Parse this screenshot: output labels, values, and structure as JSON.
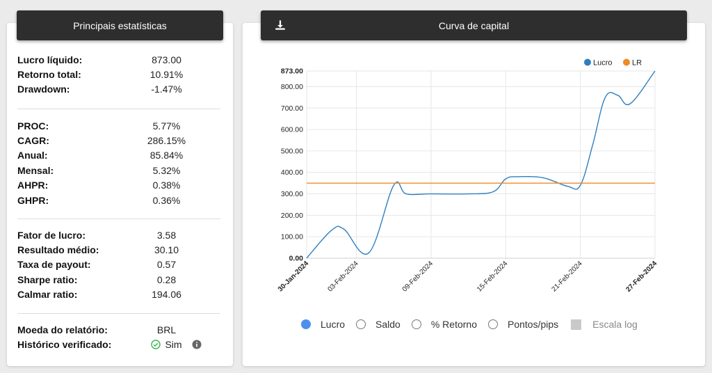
{
  "stats": {
    "title": "Principais estatísticas",
    "groups": [
      [
        {
          "label": "Lucro líquido:",
          "value": "873.00"
        },
        {
          "label": "Retorno total:",
          "value": "10.91%"
        },
        {
          "label": "Drawdown:",
          "value": "-1.47%"
        }
      ],
      [
        {
          "label": "PROC:",
          "value": "5.77%"
        },
        {
          "label": "CAGR:",
          "value": "286.15%"
        },
        {
          "label": "Anual:",
          "value": "85.84%"
        },
        {
          "label": "Mensal:",
          "value": "5.32%"
        },
        {
          "label": "AHPR:",
          "value": "0.38%"
        },
        {
          "label": "GHPR:",
          "value": "0.36%"
        }
      ],
      [
        {
          "label": "Fator de lucro:",
          "value": "3.58"
        },
        {
          "label": "Resultado médio:",
          "value": "30.10"
        },
        {
          "label": "Taxa de payout:",
          "value": "0.57"
        },
        {
          "label": "Sharpe ratio:",
          "value": "0.28"
        },
        {
          "label": "Calmar ratio:",
          "value": "194.06"
        }
      ],
      [
        {
          "label": "Moeda do relatório:",
          "value": "BRL"
        },
        {
          "label": "Histórico verificado:",
          "value": "Sim",
          "verified": true
        }
      ]
    ]
  },
  "chart_panel": {
    "title": "Curva de capital",
    "options": [
      {
        "label": "Lucro",
        "selected": true
      },
      {
        "label": "Saldo",
        "selected": false
      },
      {
        "label": "% Retorno",
        "selected": false
      },
      {
        "label": "Pontos/pips",
        "selected": false
      }
    ],
    "log_scale_label": "Escala log"
  },
  "chart_data": {
    "type": "line",
    "legend": [
      "Lucro",
      "LR"
    ],
    "legend_position": "top-right",
    "ylim": [
      0,
      873
    ],
    "y_ticks": [
      "0.00",
      "100.00",
      "200.00",
      "300.00",
      "400.00",
      "500.00",
      "600.00",
      "700.00",
      "800.00",
      "873.00"
    ],
    "x_ticks": [
      "30-Jan-2024",
      "03-Feb-2024",
      "09-Feb-2024",
      "15-Feb-2024",
      "21-Feb-2024",
      "27-Feb-2024"
    ],
    "grid": true,
    "series": [
      {
        "name": "Lucro",
        "color": "#2e7fc0",
        "x": [
          0,
          2,
          3,
          5,
          7,
          8,
          10,
          13,
          15,
          16,
          17,
          19,
          21,
          22,
          23,
          24,
          25,
          26,
          28
        ],
        "values": [
          0,
          130,
          135,
          25,
          340,
          300,
          300,
          300,
          310,
          370,
          380,
          375,
          335,
          340,
          530,
          750,
          760,
          720,
          873
        ]
      },
      {
        "name": "LR",
        "color": "#f08a24",
        "x": [
          0,
          28
        ],
        "values": [
          350,
          350
        ]
      }
    ]
  },
  "colors": {
    "header_bg": "#2e2e2e",
    "radio_on": "#4d8fec",
    "verified": "#3bb54a"
  }
}
